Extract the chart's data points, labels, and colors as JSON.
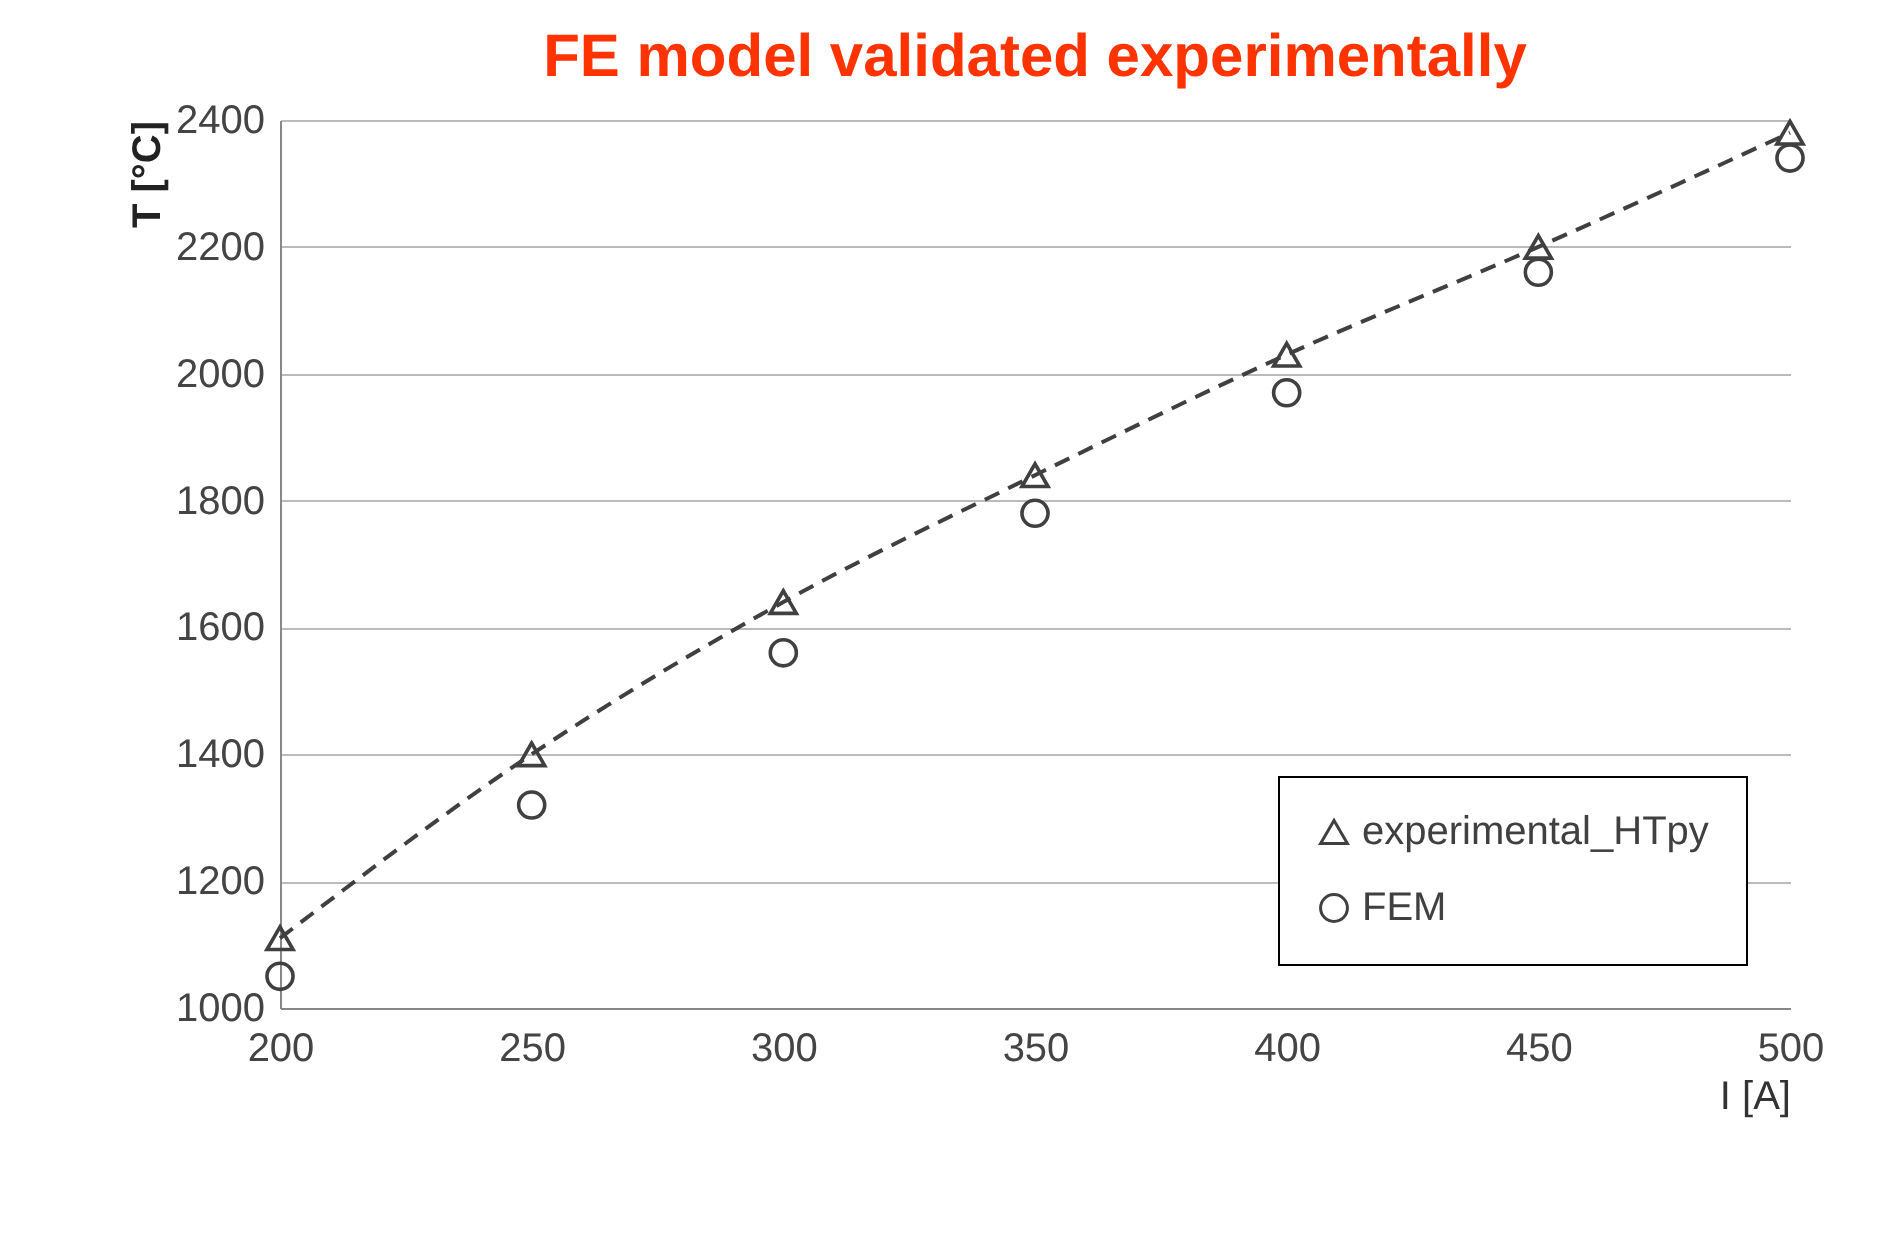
{
  "chart_data": {
    "type": "line",
    "title": "FE model validated experimentally",
    "xlabel": "I [A]",
    "ylabel": "T [°C]",
    "x": [
      200,
      250,
      300,
      350,
      400,
      450,
      500
    ],
    "series": [
      {
        "name": "experimental_HTpy",
        "color": "#404040",
        "marker": "triangle",
        "line_style": "dashed",
        "values": [
          1110,
          1400,
          1640,
          1840,
          2030,
          2200,
          2380
        ]
      },
      {
        "name": "FEM",
        "type": "scatter",
        "color": "#404040",
        "marker": "circle",
        "values": [
          1050,
          1320,
          1560,
          1780,
          1970,
          2160,
          2340
        ]
      }
    ],
    "xlim": [
      200,
      500
    ],
    "xticks": [
      200,
      250,
      300,
      350,
      400,
      450,
      500
    ],
    "ylim": [
      1000,
      2400
    ],
    "yticks": [
      1000,
      1200,
      1400,
      1600,
      1800,
      2000,
      2200,
      2400
    ],
    "grid": "y",
    "legend": "bottom right"
  }
}
